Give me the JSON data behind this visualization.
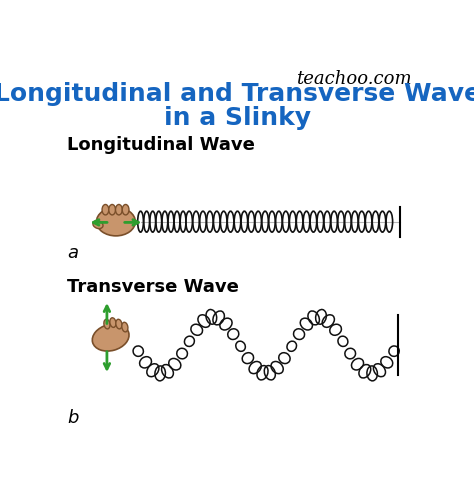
{
  "title_line1": "Longitudinal and Transverse Wave",
  "title_line2": "in a Slinky",
  "title_color": "#1565C0",
  "title_fontsize": 18,
  "watermark": "teachoo.com",
  "watermark_fontsize": 13,
  "label_a": "a",
  "label_b": "b",
  "long_wave_label": "Longitudinal Wave",
  "trans_wave_label": "Transverse Wave",
  "bg_color": "#ffffff",
  "arrow_color": "#2e9e2e",
  "slinky_color": "#111111",
  "hand_color": "#c8956c",
  "hand_outline": "#7a4f2a"
}
